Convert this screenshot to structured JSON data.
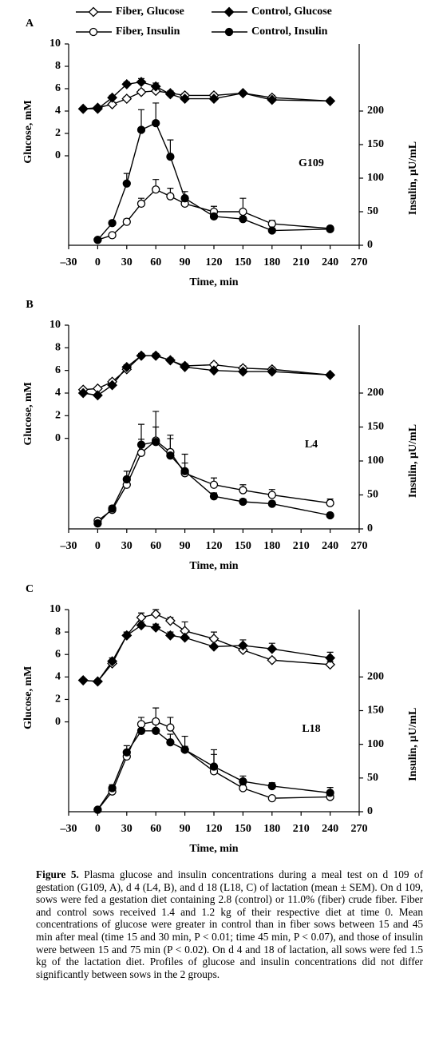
{
  "chart_data": [
    {
      "type": "line",
      "panel_label": "A",
      "annotation": "G109",
      "legend": "top",
      "xlabel": "Time, min",
      "ylabel": "Glucose, mM",
      "y2label": "Insulin, µU/mL",
      "xlim": [
        -30,
        270
      ],
      "xticks": [
        {
          "value": -30,
          "label": "–30"
        },
        0,
        30,
        60,
        90,
        120,
        150,
        180,
        210,
        240,
        270
      ],
      "ylim": [
        -8,
        10
      ],
      "yticks": [
        0,
        2,
        4,
        6,
        8,
        10
      ],
      "y2lim": [
        0,
        300
      ],
      "y2ticks": [
        0,
        50,
        100,
        150,
        200
      ],
      "series": [
        {
          "name": "Fiber, Glucose",
          "marker": "diamond",
          "filled": false,
          "x": [
            -15,
            0,
            15,
            30,
            45,
            60,
            75,
            90,
            120,
            150,
            180,
            240
          ],
          "values": [
            4.2,
            4.3,
            4.6,
            5.1,
            5.7,
            5.8,
            5.6,
            5.4,
            5.4,
            5.6,
            5.2,
            4.9
          ],
          "errors": [
            0.1,
            0.1,
            0.2,
            0.2,
            0.2,
            0.2,
            0.2,
            0.2,
            0.2,
            0.1,
            0.2,
            0.1
          ]
        },
        {
          "name": "Control, Glucose",
          "marker": "diamond",
          "filled": true,
          "x": [
            -15,
            0,
            15,
            30,
            45,
            60,
            75,
            90,
            120,
            150,
            180,
            240
          ],
          "values": [
            4.2,
            4.2,
            5.2,
            6.4,
            6.6,
            6.2,
            5.5,
            5.1,
            5.1,
            5.6,
            5.0,
            4.9
          ],
          "errors": [
            0.1,
            0.1,
            0.2,
            0.2,
            0.3,
            0.3,
            0.2,
            0.2,
            0.2,
            0.1,
            0.1,
            0.1
          ]
        },
        {
          "name": "Fiber, Insulin",
          "marker": "circle",
          "filled": false,
          "axis": "y2",
          "x": [
            0,
            15,
            30,
            45,
            60,
            75,
            90,
            120,
            150,
            180,
            240
          ],
          "values": [
            8,
            15,
            35,
            62,
            83,
            73,
            62,
            50,
            50,
            32,
            25
          ],
          "errors": [
            2,
            3,
            4,
            8,
            15,
            12,
            8,
            8,
            20,
            5,
            3
          ]
        },
        {
          "name": "Control, Insulin",
          "marker": "circle",
          "filled": true,
          "axis": "y2",
          "x": [
            0,
            15,
            30,
            45,
            60,
            75,
            90,
            120,
            150,
            180,
            240
          ],
          "values": [
            8,
            33,
            92,
            172,
            182,
            132,
            70,
            43,
            39,
            22,
            24
          ],
          "errors": [
            2,
            4,
            15,
            30,
            30,
            25,
            10,
            5,
            4,
            3,
            3
          ]
        }
      ]
    },
    {
      "type": "line",
      "panel_label": "B",
      "annotation": "L4",
      "xlabel": "Time, min",
      "ylabel": "Glucose, mM",
      "y2label": "Insulin, µU/mL",
      "xlim": [
        -30,
        270
      ],
      "xticks": [
        {
          "value": -30,
          "label": "–30"
        },
        0,
        30,
        60,
        90,
        120,
        150,
        180,
        210,
        240,
        270
      ],
      "ylim": [
        -8,
        10
      ],
      "yticks": [
        0,
        2,
        4,
        6,
        8,
        10
      ],
      "y2lim": [
        0,
        300
      ],
      "y2ticks": [
        0,
        50,
        100,
        150,
        200
      ],
      "series": [
        {
          "marker": "diamond",
          "filled": false,
          "x": [
            -15,
            0,
            15,
            30,
            45,
            60,
            75,
            90,
            120,
            150,
            180,
            240
          ],
          "values": [
            4.3,
            4.4,
            5.0,
            6.1,
            7.3,
            7.3,
            6.9,
            6.4,
            6.5,
            6.2,
            6.1,
            5.6
          ],
          "errors": [
            0.1,
            0.1,
            0.2,
            0.2,
            0.2,
            0.2,
            0.2,
            0.2,
            0.2,
            0.2,
            0.2,
            0.1
          ]
        },
        {
          "marker": "diamond",
          "filled": true,
          "x": [
            -15,
            0,
            15,
            30,
            45,
            60,
            75,
            90,
            120,
            150,
            180,
            240
          ],
          "values": [
            4.0,
            3.8,
            4.7,
            6.3,
            7.3,
            7.3,
            6.9,
            6.3,
            6.0,
            5.9,
            5.9,
            5.6
          ],
          "errors": [
            0.1,
            0.1,
            0.2,
            0.2,
            0.2,
            0.2,
            0.2,
            0.2,
            0.2,
            0.2,
            0.2,
            0.1
          ]
        },
        {
          "marker": "circle",
          "filled": false,
          "axis": "y2",
          "x": [
            0,
            15,
            30,
            45,
            60,
            75,
            90,
            120,
            150,
            180,
            240
          ],
          "values": [
            12,
            28,
            65,
            112,
            130,
            113,
            82,
            65,
            57,
            50,
            38
          ],
          "errors": [
            2,
            3,
            8,
            20,
            20,
            20,
            15,
            10,
            8,
            8,
            6
          ]
        },
        {
          "marker": "circle",
          "filled": true,
          "axis": "y2",
          "x": [
            0,
            15,
            30,
            45,
            60,
            75,
            90,
            120,
            150,
            180,
            240
          ],
          "values": [
            8,
            30,
            73,
            124,
            128,
            108,
            85,
            48,
            40,
            37,
            20
          ],
          "errors": [
            3,
            4,
            12,
            30,
            45,
            30,
            25,
            5,
            4,
            4,
            3
          ]
        }
      ]
    },
    {
      "type": "line",
      "panel_label": "C",
      "annotation": "L18",
      "xlabel": "Time, min",
      "ylabel": "Glucose, mM",
      "y2label": "Insulin, µU/mL",
      "xlim": [
        -30,
        270
      ],
      "xticks": [
        {
          "value": -30,
          "label": "–30"
        },
        0,
        30,
        60,
        90,
        120,
        150,
        180,
        210,
        240,
        270
      ],
      "ylim": [
        -8,
        10
      ],
      "yticks": [
        0,
        2,
        4,
        6,
        8,
        10
      ],
      "y2lim": [
        0,
        300
      ],
      "y2ticks": [
        0,
        50,
        100,
        150,
        200
      ],
      "series": [
        {
          "marker": "diamond",
          "filled": false,
          "x": [
            -15,
            0,
            15,
            30,
            45,
            60,
            75,
            90,
            120,
            150,
            180,
            240
          ],
          "values": [
            3.7,
            3.6,
            5.2,
            7.7,
            9.3,
            9.6,
            9.0,
            8.1,
            7.4,
            6.4,
            5.5,
            5.1
          ],
          "errors": [
            0.1,
            0.1,
            0.2,
            0.3,
            0.4,
            0.4,
            0.3,
            0.8,
            0.6,
            0.3,
            0.2,
            0.3
          ]
        },
        {
          "marker": "diamond",
          "filled": true,
          "x": [
            -15,
            0,
            15,
            30,
            45,
            60,
            75,
            90,
            120,
            150,
            180,
            240
          ],
          "values": [
            3.7,
            3.6,
            5.4,
            7.7,
            8.6,
            8.4,
            7.7,
            7.5,
            6.7,
            6.8,
            6.5,
            5.7
          ],
          "errors": [
            0.1,
            0.1,
            0.3,
            0.3,
            0.3,
            0.3,
            0.3,
            0.4,
            0.5,
            0.5,
            0.5,
            0.5
          ]
        },
        {
          "marker": "circle",
          "filled": false,
          "axis": "y2",
          "x": [
            0,
            15,
            30,
            45,
            60,
            75,
            90,
            120,
            150,
            180,
            240
          ],
          "values": [
            3,
            30,
            82,
            130,
            134,
            125,
            92,
            60,
            35,
            20,
            22
          ],
          "errors": [
            2,
            3,
            5,
            10,
            20,
            15,
            20,
            25,
            5,
            3,
            5
          ]
        },
        {
          "marker": "circle",
          "filled": true,
          "axis": "y2",
          "x": [
            0,
            15,
            30,
            45,
            60,
            75,
            90,
            120,
            150,
            180,
            240
          ],
          "values": [
            3,
            35,
            88,
            120,
            120,
            103,
            92,
            67,
            45,
            38,
            28
          ],
          "errors": [
            2,
            5,
            10,
            10,
            10,
            12,
            5,
            25,
            8,
            5,
            8
          ]
        }
      ]
    }
  ],
  "caption": {
    "label": "Figure 5.",
    "text": "Plasma glucose and insulin concentrations during a meal test on d 109 of gestation (G109, A), d 4 (L4, B), and d 18 (L18, C) of lactation (mean ± SEM). On d 109, sows were fed a gestation diet containing 2.8 (control) or 11.0% (fiber) crude fiber. Fiber and control sows received 1.4 and 1.2 kg of their respective diet at time 0. Mean concentrations of glucose were greater in control than in fiber sows between 15 and 45 min after meal (time 15 and 30 min, P < 0.01; time 45 min, P < 0.07), and those of insulin were between 15 and 75 min (P < 0.02). On d 4 and 18 of lactation, all sows were fed 1.5 kg of the lactation diet. Profiles of glucose and insulin concentrations did not differ significantly between sows in the 2 groups."
  }
}
